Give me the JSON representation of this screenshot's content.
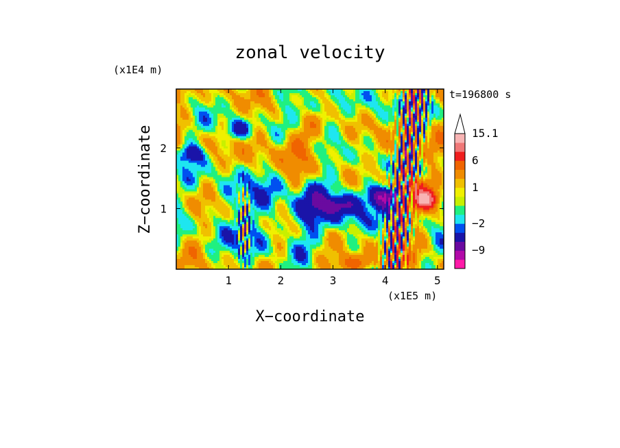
{
  "chart_data": {
    "type": "heatmap",
    "title": "zonal velocity",
    "xlabel": "X−coordinate",
    "ylabel": "Z−coordinate",
    "x_unit_note": "(x1E5 m)",
    "y_unit_note": "(x1E4 m)",
    "time_label": "t=196800 s",
    "xlim": [
      0,
      5.12
    ],
    "ylim": [
      0,
      2.97
    ],
    "x_ticks": [
      1,
      2,
      3,
      4,
      5
    ],
    "y_ticks": [
      1,
      2
    ],
    "colorbar": {
      "ticks": [
        {
          "label": "15.1",
          "value": 15.1
        },
        {
          "label": "6",
          "value": 6
        },
        {
          "label": "1",
          "value": 1
        },
        {
          "label": "−2",
          "value": -2
        },
        {
          "label": "−9",
          "value": -9
        }
      ],
      "bands": [
        {
          "color": "#ff1aa8",
          "lo": -20,
          "hi": -12
        },
        {
          "color": "#b20aa8",
          "lo": -12,
          "hi": -9
        },
        {
          "color": "#6a0aa0",
          "lo": -9,
          "hi": -6
        },
        {
          "color": "#1a14a8",
          "lo": -6,
          "hi": -3
        },
        {
          "color": "#0050f0",
          "lo": -3,
          "hi": -2
        },
        {
          "color": "#1ee6f0",
          "lo": -2,
          "hi": -1
        },
        {
          "color": "#20f080",
          "lo": -1,
          "hi": 0
        },
        {
          "color": "#c8f000",
          "lo": 0,
          "hi": 0.5
        },
        {
          "color": "#f0f000",
          "lo": 0.5,
          "hi": 1
        },
        {
          "color": "#f0c000",
          "lo": 1,
          "hi": 2
        },
        {
          "color": "#f08c00",
          "lo": 2,
          "hi": 4
        },
        {
          "color": "#f06400",
          "lo": 4,
          "hi": 6
        },
        {
          "color": "#f01e1e",
          "lo": 6,
          "hi": 9
        },
        {
          "color": "#f07878",
          "lo": 9,
          "hi": 12
        },
        {
          "color": "#f8b4b4",
          "lo": 12,
          "hi": 15.1
        }
      ]
    }
  }
}
